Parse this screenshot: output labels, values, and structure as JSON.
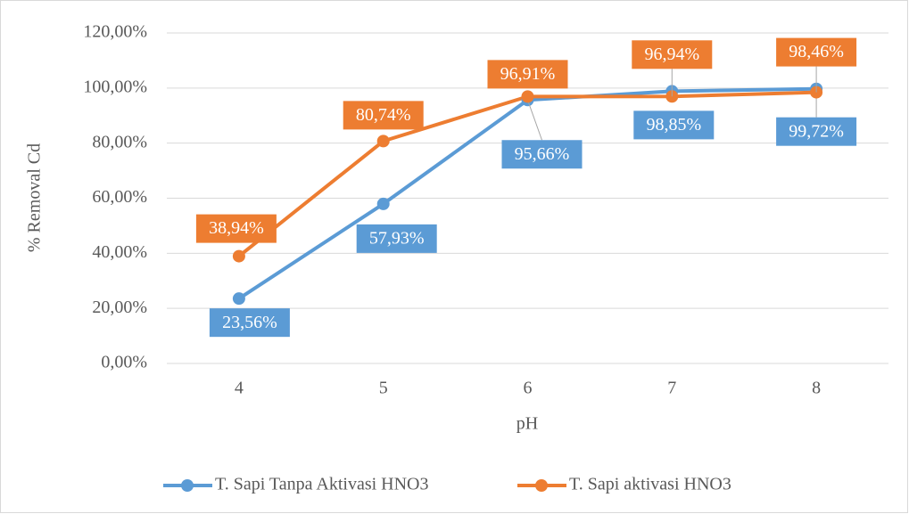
{
  "chart_data": {
    "type": "line",
    "categories": [
      "4",
      "5",
      "6",
      "7",
      "8"
    ],
    "x_label": "pH",
    "y_label": "% Removal Cd",
    "ylim": [
      0,
      120
    ],
    "yticks": [
      {
        "value": 0,
        "label": "0,00%"
      },
      {
        "value": 20,
        "label": "20,00%"
      },
      {
        "value": 40,
        "label": "40,00%"
      },
      {
        "value": 60,
        "label": "60,00%"
      },
      {
        "value": 80,
        "label": "80,00%"
      },
      {
        "value": 100,
        "label": "100,00%"
      },
      {
        "value": 120,
        "label": "120,00%"
      }
    ],
    "grid": true,
    "legend": "bottom",
    "series": [
      {
        "name": "T. Sapi Tanpa Aktivasi HNO3",
        "color": "#5b9bd5",
        "values": [
          23.56,
          57.93,
          95.66,
          98.85,
          99.72
        ],
        "value_labels": [
          "23,56%",
          "57,93%",
          "95,66%",
          "98,85%",
          "99,72%"
        ]
      },
      {
        "name": "T. Sapi aktivasi HNO3",
        "color": "#ed7d31",
        "values": [
          38.94,
          80.74,
          96.91,
          96.94,
          98.46
        ],
        "value_labels": [
          "38,94%",
          "80,74%",
          "96,91%",
          "96,94%",
          "98,46%"
        ]
      }
    ]
  }
}
